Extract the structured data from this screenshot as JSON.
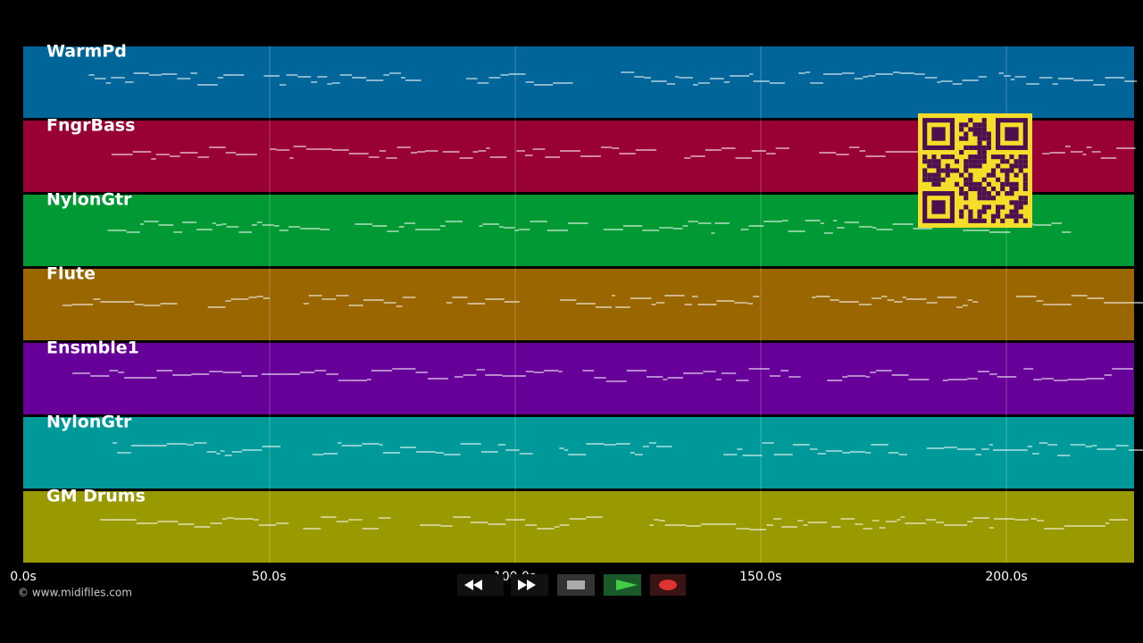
{
  "tracks": [
    {
      "name": "WarmPd",
      "color": "#006699"
    },
    {
      "name": "FngrBass",
      "color": "#990033"
    },
    {
      "name": "NylonGtr",
      "color": "#009933"
    },
    {
      "name": "Flute",
      "color": "#996600"
    },
    {
      "name": "Ensmble1",
      "color": "#660099"
    },
    {
      "name": "NylonGtr",
      "color": "#009999"
    },
    {
      "name": "GM Drums",
      "color": "#999900"
    }
  ],
  "time_axis": [
    "0.0s",
    "50.0s",
    "100.0s",
    "150.0s",
    "200.0s"
  ],
  "copyright": "© www.midifiles.com"
}
